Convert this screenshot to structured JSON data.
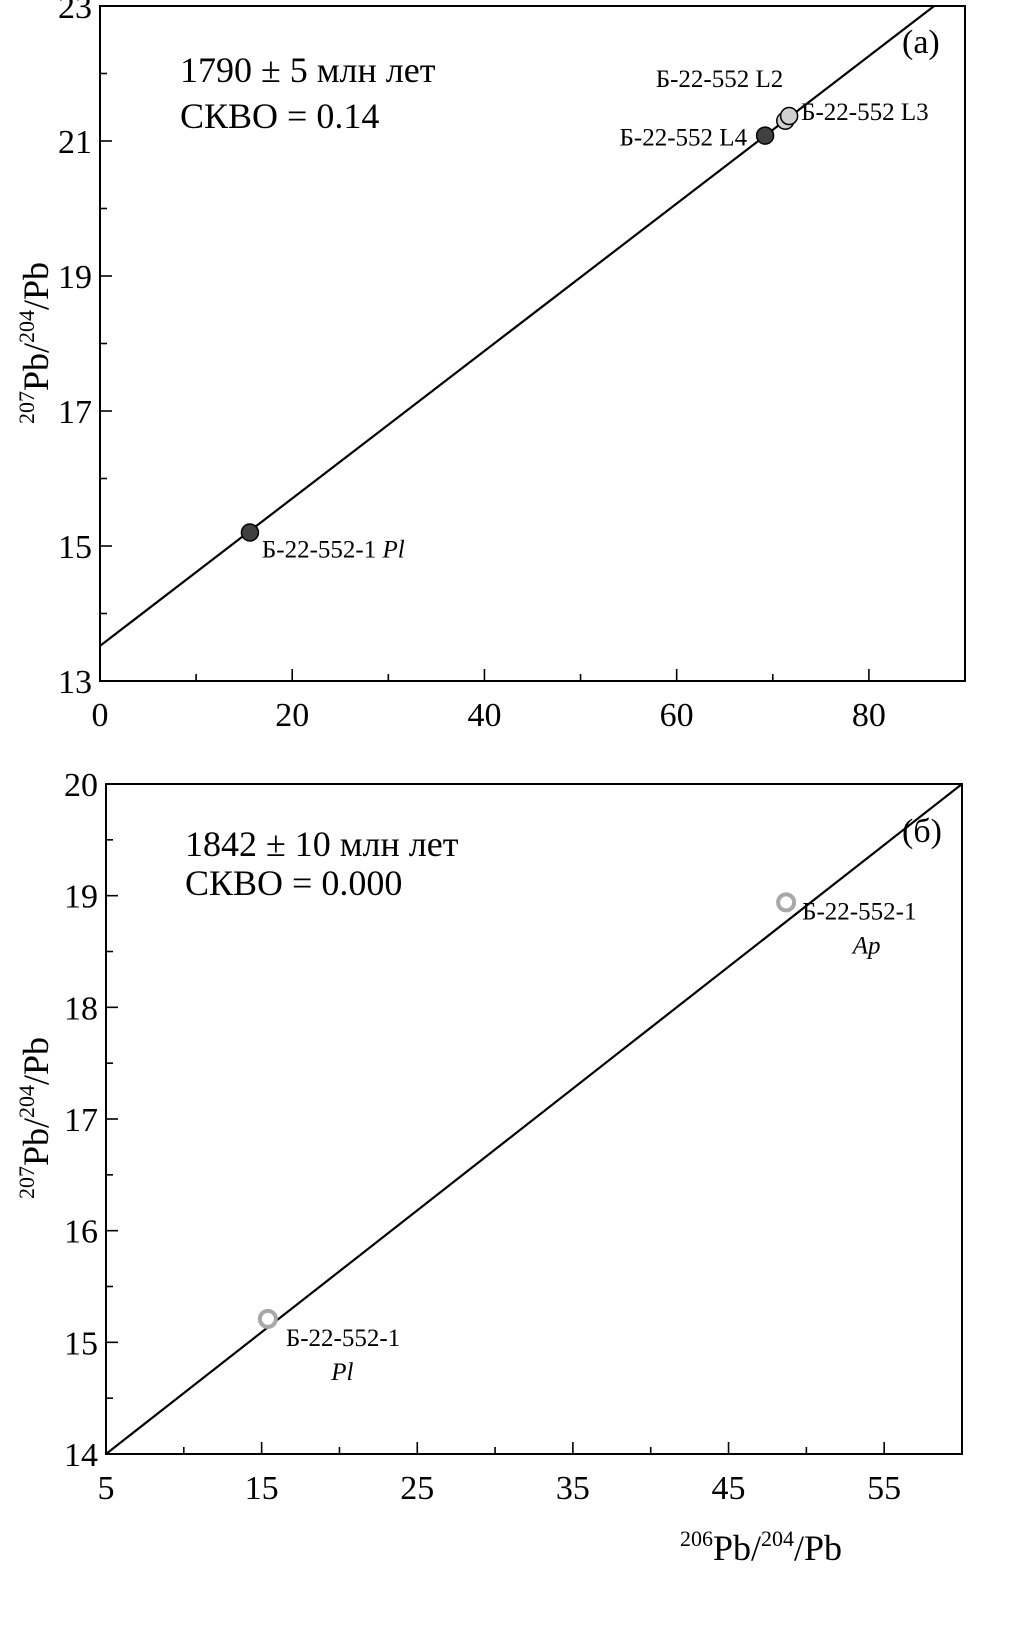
{
  "chart_data": [
    {
      "type": "scatter",
      "panel_label": "(a)",
      "xlabel": "",
      "ylabel": {
        "sup": "207",
        "main": "Pb/",
        "sup2": "204",
        "tail": "/Pb"
      },
      "xlim": [
        0,
        90
      ],
      "ylim": [
        13,
        23
      ],
      "x_ticks": [
        0,
        20,
        40,
        60,
        80
      ],
      "y_ticks": [
        13,
        15,
        17,
        19,
        21,
        23
      ],
      "x_minor_step": 10,
      "y_minor_step": 1,
      "grid": false,
      "annotations": [
        "1790 ± 5 млн лет",
        "СКВО = 0.14"
      ],
      "isochron": {
        "x": [
          0,
          90
        ],
        "y": [
          13.52,
          23.35
        ]
      },
      "points": [
        {
          "x": 15.6,
          "y": 15.2,
          "fill": "dark",
          "label": "Б-22-552-1",
          "label_italic": "Pl",
          "label_pos": "below-right"
        },
        {
          "x": 69.2,
          "y": 21.08,
          "fill": "dark",
          "label": "Б-22-552  L4",
          "label_italic": "",
          "label_pos": "left"
        },
        {
          "x": 71.3,
          "y": 21.3,
          "fill": "light",
          "label": "Б-22-552  L2",
          "label_italic": "",
          "label_pos": "above-left"
        },
        {
          "x": 71.7,
          "y": 21.37,
          "fill": "light",
          "label": "Б-22-552 L3",
          "label_italic": "",
          "label_pos": "right"
        }
      ]
    },
    {
      "type": "scatter",
      "panel_label": "(б)",
      "xlabel": {
        "sup": "206",
        "main": "Pb/",
        "sup2": "204",
        "tail": "/Pb"
      },
      "ylabel": {
        "sup": "207",
        "main": "Pb/",
        "sup2": "204",
        "tail": "/Pb"
      },
      "xlim": [
        5,
        60
      ],
      "ylim": [
        14,
        20
      ],
      "x_ticks": [
        5,
        15,
        25,
        35,
        45,
        55
      ],
      "y_ticks": [
        14,
        15,
        16,
        17,
        18,
        19,
        20
      ],
      "x_minor_step": 5,
      "y_minor_step": 0.5,
      "grid": false,
      "annotations": [
        "1842 ± 10 млн лет",
        "СКВО = 0.000"
      ],
      "isochron": {
        "x": [
          5,
          60
        ],
        "y": [
          14.0,
          20.0
        ]
      },
      "points": [
        {
          "x": 15.4,
          "y": 15.21,
          "fill": "hollow",
          "label": "Б-22-552-1",
          "label_italic": "Pl",
          "label_pos": "below-right-stacked"
        },
        {
          "x": 48.7,
          "y": 18.94,
          "fill": "hollow",
          "label": "Б-22-552-1",
          "label_italic": "Ap",
          "label_pos": "right-stacked"
        }
      ]
    }
  ],
  "colors": {
    "axis": "#000000",
    "line": "#000000",
    "point_dark": "#404040",
    "point_light": "#d0d0d0",
    "point_hollow_stroke": "#a8a8a8",
    "label_text": "#000000"
  }
}
